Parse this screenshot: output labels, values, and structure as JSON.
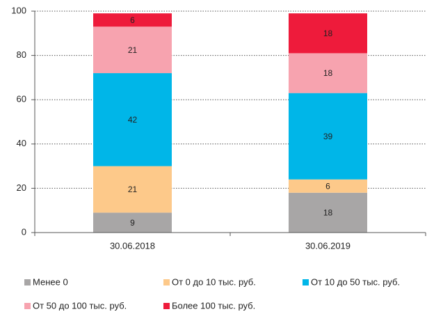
{
  "chart_data": {
    "type": "stacked_bar",
    "categories": [
      "30.06.2018",
      "30.06.2019"
    ],
    "series": [
      {
        "name": "Менее 0",
        "color": "#a8a6a6",
        "values": [
          9,
          18
        ]
      },
      {
        "name": "От 0 до 10 тыс. руб.",
        "color": "#fdc98a",
        "values": [
          21,
          6
        ]
      },
      {
        "name": "От 10 до 50 тыс. руб.",
        "color": "#00b6e8",
        "values": [
          42,
          39
        ]
      },
      {
        "name": "От 50 до 100 тыс. руб.",
        "color": "#f7a3af",
        "values": [
          21,
          18
        ]
      },
      {
        "name": "Более 100 тыс. руб.",
        "color": "#ee1b3b",
        "values": [
          6,
          18
        ]
      }
    ],
    "ylim": [
      0,
      100
    ],
    "yticks": [
      0,
      20,
      40,
      60,
      80,
      100
    ],
    "grid": true
  }
}
